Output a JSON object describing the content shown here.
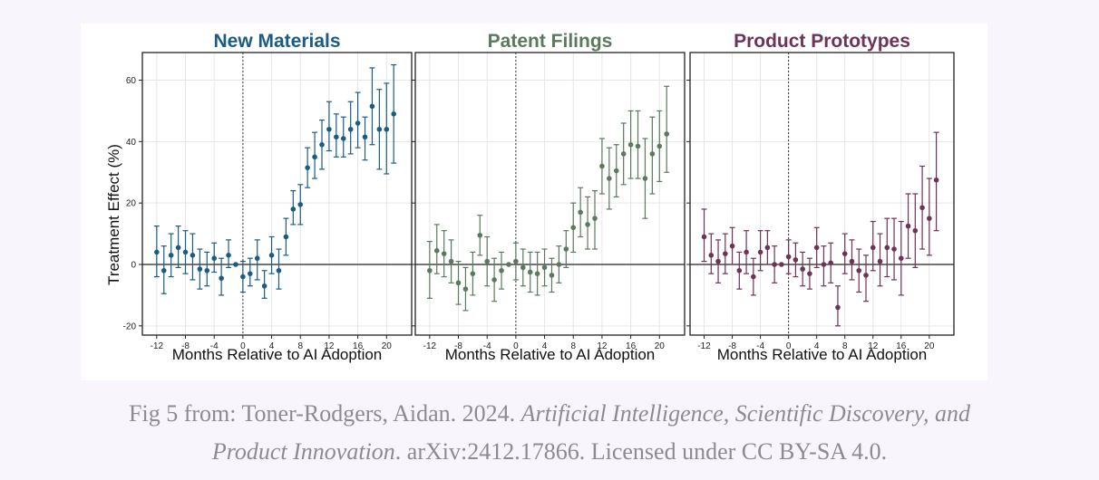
{
  "caption": {
    "prefix": "Fig 5 from: Toner-Rodgers, Aidan. 2024. ",
    "title_part1": "Artificial Intelligence, Scientific Discovery, and",
    "title_part2": "Product Innovation",
    "suffix": ". arXiv:2412.17866. Licensed under CC BY-SA 4.0."
  },
  "colors": {
    "new_materials": "#1b5d82",
    "patent_filings": "#5a7a5e",
    "product_prototypes": "#6e3358"
  },
  "chart_data": [
    {
      "type": "scatter",
      "title": "New Materials",
      "xlabel": "Months Relative to AI Adoption",
      "ylabel": "Treatment Effect (%)",
      "xlim": [
        -14,
        23.5
      ],
      "ylim": [
        -23,
        69
      ],
      "xticks": [
        -12,
        -8,
        -4,
        0,
        4,
        8,
        12,
        16,
        20
      ],
      "yticks": [
        -20,
        0,
        20,
        40,
        60
      ],
      "reference_lines": {
        "vertical_x": 0,
        "horizontal_y": 0
      },
      "grid": true,
      "x": [
        -12,
        -11,
        -10,
        -9,
        -8,
        -7,
        -6,
        -5,
        -4,
        -3,
        -2,
        -1,
        0,
        1,
        2,
        3,
        4,
        5,
        6,
        7,
        8,
        9,
        10,
        11,
        12,
        13,
        14,
        15,
        16,
        17,
        18,
        19,
        20,
        21
      ],
      "y": [
        4,
        -2,
        3,
        5.5,
        4,
        3,
        -1.5,
        -2,
        2,
        -4.5,
        3,
        0,
        -4,
        -3,
        2,
        -7,
        3,
        -2,
        9,
        18,
        19.5,
        31.5,
        35,
        39,
        44,
        41.5,
        41,
        44,
        46,
        41.5,
        51.5,
        44,
        44,
        49
      ],
      "ci_low": [
        -4,
        -9.5,
        -4,
        -1,
        -3,
        -5,
        -8,
        -7,
        -2.5,
        -10,
        -1,
        null,
        -9,
        -7,
        -5,
        -11,
        -3,
        -8,
        3,
        13,
        13,
        25,
        28,
        31,
        37,
        35,
        35,
        36,
        38,
        34,
        39,
        31,
        29.5,
        33
      ],
      "ci_high": [
        12.5,
        6,
        10,
        12.5,
        11,
        10,
        5,
        4,
        7,
        2,
        8,
        null,
        1,
        2,
        8,
        -2,
        9,
        5,
        15,
        24,
        26,
        38,
        43,
        47,
        53,
        49,
        48,
        53,
        56,
        48,
        64,
        57,
        59,
        65
      ]
    },
    {
      "type": "scatter",
      "title": "Patent Filings",
      "xlabel": "Months Relative to AI Adoption",
      "ylabel": "",
      "xlim": [
        -14,
        23.5
      ],
      "ylim": [
        -23,
        69
      ],
      "xticks": [
        -12,
        -8,
        -4,
        0,
        4,
        8,
        12,
        16,
        20
      ],
      "yticks": [
        -20,
        0,
        20,
        40,
        60
      ],
      "reference_lines": {
        "vertical_x": 0,
        "horizontal_y": 0
      },
      "grid": true,
      "x": [
        -12,
        -11,
        -10,
        -9,
        -8,
        -7,
        -6,
        -5,
        -4,
        -3,
        -2,
        -1,
        0,
        1,
        2,
        3,
        4,
        5,
        6,
        7,
        8,
        9,
        10,
        11,
        12,
        13,
        14,
        15,
        16,
        17,
        18,
        19,
        20,
        21
      ],
      "y": [
        -2,
        4.5,
        3.5,
        1,
        -6,
        -8,
        -3,
        9.5,
        1,
        -5,
        -2,
        0,
        1,
        -1,
        -2.5,
        -3,
        -1,
        -3.5,
        0,
        5,
        12,
        17,
        13,
        15,
        32,
        28,
        30.5,
        36,
        39,
        38.5,
        28,
        36,
        38.5,
        42.5
      ],
      "ci_low": [
        -11,
        -3,
        -4,
        -6,
        -13,
        -15,
        -10,
        3,
        -7,
        -12,
        -8,
        null,
        -5,
        -7,
        -9,
        -10,
        -7,
        -9,
        -6,
        -1,
        4,
        9,
        5,
        5,
        23,
        18,
        22,
        26,
        28,
        28,
        15,
        23,
        27,
        30
      ],
      "ci_high": [
        7.5,
        13,
        11,
        8,
        1,
        -1,
        4,
        16,
        9,
        2,
        4,
        null,
        7,
        5,
        4,
        4,
        5,
        2,
        6,
        11,
        20,
        25,
        22,
        24,
        41,
        38,
        39,
        46,
        50,
        50,
        41,
        48,
        50,
        58
      ]
    },
    {
      "type": "scatter",
      "title": "Product Prototypes",
      "xlabel": "Months Relative to AI Adoption",
      "ylabel": "",
      "xlim": [
        -14,
        23.5
      ],
      "ylim": [
        -23,
        69
      ],
      "xticks": [
        -12,
        -8,
        -4,
        0,
        4,
        8,
        12,
        16,
        20
      ],
      "yticks": [
        -20,
        0,
        20,
        40,
        60
      ],
      "reference_lines": {
        "vertical_x": 0,
        "horizontal_y": 0
      },
      "grid": true,
      "x": [
        -12,
        -11,
        -10,
        -9,
        -8,
        -7,
        -6,
        -5,
        -4,
        -3,
        -2,
        -1,
        0,
        1,
        2,
        3,
        4,
        5,
        6,
        7,
        8,
        9,
        10,
        11,
        12,
        13,
        14,
        15,
        16,
        17,
        18,
        19,
        20,
        21
      ],
      "y": [
        9,
        3,
        1,
        3.5,
        6,
        -2,
        4,
        -4,
        4,
        5.5,
        0,
        0,
        2.5,
        1.5,
        -1.5,
        -3,
        5.5,
        0,
        0.5,
        -14,
        3.5,
        1,
        -2,
        -3.5,
        5.5,
        1,
        5.5,
        5,
        2,
        12.5,
        11,
        18.5,
        15,
        27.5
      ],
      "ci_low": [
        1,
        -3,
        -6,
        -3,
        0,
        -8,
        -3,
        -10,
        -2,
        0,
        -6,
        null,
        -3,
        -4,
        -7,
        -8,
        -1,
        -7,
        -6,
        -20,
        -3,
        -5,
        -9,
        -12,
        -2,
        -7,
        -4,
        -5,
        -10,
        2,
        -1,
        5,
        3,
        11
      ],
      "ci_high": [
        18,
        10,
        8,
        10,
        12,
        4,
        11,
        2,
        11,
        11,
        6,
        null,
        8,
        7,
        4,
        2,
        12,
        6,
        7,
        -7,
        10,
        8,
        5,
        3,
        14,
        10,
        15,
        15,
        14,
        23,
        23,
        32,
        28,
        43
      ]
    }
  ]
}
